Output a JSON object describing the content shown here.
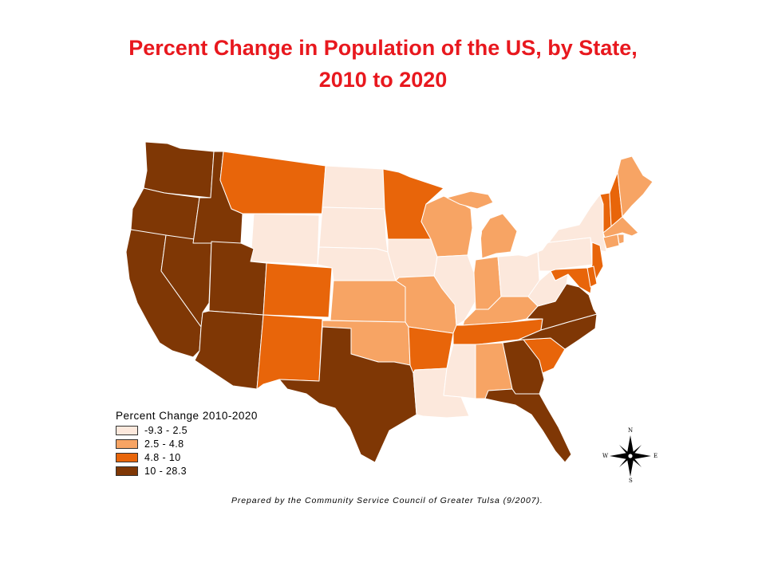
{
  "title": {
    "line1": "Percent Change in Population of the US, by State,",
    "line2": "2010 to 2020"
  },
  "legend": {
    "title": "Percent Change 2010-2020",
    "classes": [
      {
        "label": "-9.3 - 2.5",
        "color": "#fce8dc"
      },
      {
        "label": "2.5 - 4.8",
        "color": "#f7a464"
      },
      {
        "label": "4.8 - 10",
        "color": "#e8650a"
      },
      {
        "label": "10 - 28.3",
        "color": "#7f3705"
      }
    ]
  },
  "credit": "Prepared by the Community Service Council of Greater Tulsa (9/2007).",
  "compass": {
    "n": "N",
    "s": "S",
    "e": "E",
    "w": "W"
  },
  "states": {
    "WA": 3,
    "OR": 3,
    "CA": 3,
    "NV": 3,
    "ID": 3,
    "UT": 3,
    "AZ": 3,
    "TX": 3,
    "GA": 3,
    "FL": 3,
    "NC": 3,
    "VA": 3,
    "MT": 2,
    "CO": 2,
    "NM": 2,
    "MN": 2,
    "AR": 2,
    "TN": 2,
    "SC": 2,
    "VT": 2,
    "NH": 2,
    "NJ": 2,
    "MD": 2,
    "DE": 2,
    "KS": 1,
    "OK": 1,
    "MO": 1,
    "WI": 1,
    "MI": 1,
    "IN": 1,
    "KY": 1,
    "AL": 1,
    "ME": 1,
    "MA": 1,
    "CT": 1,
    "RI": 1,
    "WY": 0,
    "ND": 0,
    "SD": 0,
    "NE": 0,
    "IA": 0,
    "IL": 0,
    "OH": 0,
    "WV": 0,
    "PA": 0,
    "NY": 0,
    "MS": 0,
    "LA": 0
  }
}
